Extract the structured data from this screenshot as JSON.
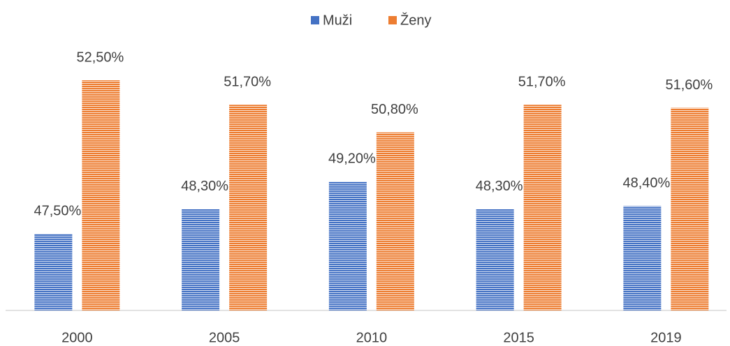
{
  "chart_data": {
    "type": "bar",
    "categories": [
      "2000",
      "2005",
      "2010",
      "2015",
      "2019"
    ],
    "series": [
      {
        "name": "Muži",
        "color": "#4472c4",
        "values": [
          47.5,
          48.3,
          49.2,
          48.3,
          48.4
        ],
        "value_labels": [
          "47,50%",
          "48,30%",
          "49,20%",
          "48,30%",
          "48,40%"
        ]
      },
      {
        "name": "Ženy",
        "color": "#ed7d31",
        "values": [
          52.5,
          51.7,
          50.8,
          51.7,
          51.6
        ],
        "value_labels": [
          "52,50%",
          "51,70%",
          "50,80%",
          "51,70%",
          "51,60%"
        ]
      }
    ],
    "ylim": [
      45,
      53
    ],
    "legend": "top"
  }
}
